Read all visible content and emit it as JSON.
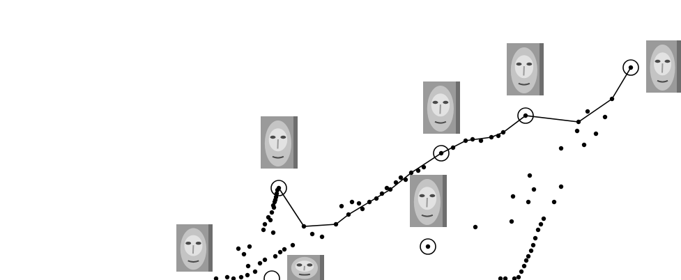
{
  "figure": {
    "background": "#ffffff",
    "point_color": "#000000",
    "path_color": "#000000",
    "face_tones": [
      "#9a9a9a",
      "#c4c4c4",
      "#e2e2e2",
      "#4a4a4a"
    ]
  },
  "faces": [
    {
      "name": "face-thumbnail-1"
    },
    {
      "name": "face-thumbnail-2"
    },
    {
      "name": "face-thumbnail-3"
    },
    {
      "name": "face-thumbnail-4"
    },
    {
      "name": "face-thumbnail-5"
    },
    {
      "name": "face-thumbnail-6"
    },
    {
      "name": "face-thumbnail-7"
    }
  ]
}
